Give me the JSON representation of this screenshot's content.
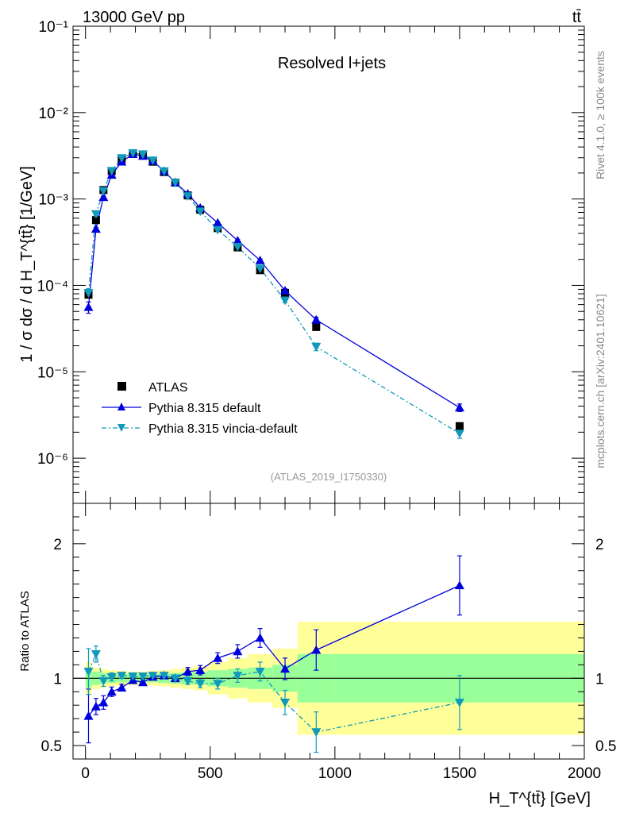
{
  "header": {
    "collision": "13000 GeV pp",
    "process": "tt̄",
    "plot_title": "Resolved l+jets",
    "analysis_id": "(ATLAS_2019_I1750330)",
    "side_label_top": "Rivet 4.1.0, ≥ 100k events",
    "side_label_bottom": "mcplots.cern.ch [arXiv:2401.10621]"
  },
  "colors": {
    "data": "#000000",
    "default": "#0000dd",
    "vincia": "#1199bb",
    "band_inner": "#99ff99",
    "band_outer": "#ffff99"
  },
  "chart_data": [
    {
      "type": "scatter",
      "panel": "main",
      "ylabel": "1 / σ dσ / d H_T^{tt̄} [1/GeV]",
      "yscale": "log",
      "ylim": [
        3e-07,
        0.1
      ],
      "xlim": [
        -50,
        2000
      ],
      "y_tick_labels": [
        "10⁻⁶",
        "10⁻⁵",
        "10⁻⁴",
        "10⁻³",
        "10⁻²",
        "10⁻¹"
      ],
      "legend": {
        "position": "lower-left",
        "entries": [
          "ATLAS",
          "Pythia 8.315 default",
          "Pythia 8.315 vincia-default"
        ]
      },
      "x": [
        12,
        42,
        72,
        105,
        145,
        190,
        230,
        270,
        315,
        360,
        410,
        460,
        530,
        610,
        700,
        800,
        925,
        1500
      ],
      "series": [
        {
          "name": "ATLAS",
          "style": "square",
          "values": [
            7.8e-05,
            0.00057,
            0.00127,
            0.0021,
            0.0029,
            0.00335,
            0.00325,
            0.0027,
            0.00205,
            0.00155,
            0.0011,
            0.00075,
            0.00046,
            0.000275,
            0.00015,
            8.2e-05,
            3.3e-05,
            2.35e-06
          ]
        },
        {
          "name": "Pythia 8.315 default",
          "style": "triangle-up-solid",
          "values": [
            5.6e-05,
            0.00045,
            0.00105,
            0.0019,
            0.0027,
            0.0033,
            0.00315,
            0.00275,
            0.0021,
            0.00155,
            0.00115,
            0.00079,
            0.00053,
            0.00033,
            0.000195,
            8.7e-05,
            4e-05,
            3.85e-06
          ],
          "errors": [
            0.15,
            0.04,
            0.03,
            0.02,
            0.02,
            0.02,
            0.02,
            0.02,
            0.02,
            0.02,
            0.02,
            0.025,
            0.03,
            0.03,
            0.035,
            0.05,
            0.07,
            0.1
          ]
        },
        {
          "name": "Pythia 8.315 vincia-default",
          "style": "triangle-down-dashdot",
          "values": [
            8.2e-05,
            0.00067,
            0.00124,
            0.00212,
            0.00298,
            0.0034,
            0.0033,
            0.0028,
            0.0021,
            0.00155,
            0.00108,
            0.00072,
            0.00044,
            0.00028,
            0.000157,
            6.7e-05,
            1.95e-05,
            1.93e-06
          ],
          "errors": [
            0.12,
            0.04,
            0.03,
            0.02,
            0.02,
            0.02,
            0.02,
            0.02,
            0.02,
            0.02,
            0.02,
            0.025,
            0.03,
            0.03,
            0.04,
            0.06,
            0.1,
            0.12
          ]
        }
      ]
    },
    {
      "type": "scatter",
      "panel": "ratio",
      "ylabel": "Ratio to ATLAS",
      "xlabel": "H_T^{tt̄} [GeV]",
      "ylim": [
        0.4,
        2.3
      ],
      "xlim": [
        -50,
        2000
      ],
      "x_ticks": [
        0,
        500,
        1000,
        1500,
        2000
      ],
      "y_ticks": [
        0.5,
        1,
        2
      ],
      "x_tick_labels": [
        "0",
        "500",
        "1000",
        "1500",
        "2000"
      ],
      "y_tick_labels": [
        "0.5",
        "1",
        "2"
      ],
      "bins": [
        0,
        25,
        60,
        85,
        125,
        165,
        210,
        250,
        290,
        340,
        385,
        435,
        490,
        570,
        650,
        750,
        850,
        1000,
        2000
      ],
      "band_inner": [
        [
          0.93,
          1.07
        ],
        [
          0.95,
          1.05
        ],
        [
          0.96,
          1.04
        ],
        [
          0.965,
          1.035
        ],
        [
          0.97,
          1.03
        ],
        [
          0.97,
          1.03
        ],
        [
          0.97,
          1.03
        ],
        [
          0.97,
          1.03
        ],
        [
          0.965,
          1.035
        ],
        [
          0.96,
          1.04
        ],
        [
          0.955,
          1.045
        ],
        [
          0.95,
          1.05
        ],
        [
          0.94,
          1.06
        ],
        [
          0.93,
          1.07
        ],
        [
          0.92,
          1.08
        ],
        [
          0.9,
          1.1
        ],
        [
          0.82,
          1.18
        ],
        [
          0.82,
          1.18
        ]
      ],
      "band_outer": [
        [
          0.88,
          1.12
        ],
        [
          0.92,
          1.08
        ],
        [
          0.93,
          1.07
        ],
        [
          0.94,
          1.06
        ],
        [
          0.945,
          1.055
        ],
        [
          0.95,
          1.05
        ],
        [
          0.95,
          1.05
        ],
        [
          0.945,
          1.055
        ],
        [
          0.94,
          1.06
        ],
        [
          0.93,
          1.07
        ],
        [
          0.92,
          1.08
        ],
        [
          0.91,
          1.09
        ],
        [
          0.88,
          1.12
        ],
        [
          0.85,
          1.15
        ],
        [
          0.82,
          1.18
        ],
        [
          0.78,
          1.22
        ],
        [
          0.58,
          1.42
        ],
        [
          0.58,
          1.42
        ]
      ],
      "x": [
        12,
        42,
        72,
        105,
        145,
        190,
        230,
        270,
        315,
        360,
        410,
        460,
        530,
        610,
        700,
        800,
        925,
        1500
      ],
      "series": [
        {
          "name": "Pythia 8.315 default",
          "values": [
            0.72,
            0.79,
            0.82,
            0.9,
            0.93,
            0.985,
            0.97,
            1.01,
            1.02,
            1.0,
            1.05,
            1.06,
            1.15,
            1.2,
            1.3,
            1.07,
            1.21,
            1.69
          ],
          "errors": [
            0.2,
            0.06,
            0.05,
            0.035,
            0.025,
            0.02,
            0.02,
            0.02,
            0.02,
            0.02,
            0.03,
            0.035,
            0.04,
            0.05,
            0.07,
            0.08,
            0.15,
            0.22
          ]
        },
        {
          "name": "Pythia 8.315 vincia-default",
          "values": [
            1.05,
            1.18,
            0.98,
            1.01,
            1.02,
            1.015,
            1.015,
            1.02,
            1.02,
            1.0,
            0.98,
            0.96,
            0.96,
            1.02,
            1.05,
            0.82,
            0.6,
            0.82
          ],
          "errors": [
            0.17,
            0.06,
            0.04,
            0.03,
            0.02,
            0.02,
            0.02,
            0.02,
            0.02,
            0.02,
            0.025,
            0.03,
            0.04,
            0.05,
            0.07,
            0.09,
            0.15,
            0.2
          ]
        }
      ]
    }
  ]
}
